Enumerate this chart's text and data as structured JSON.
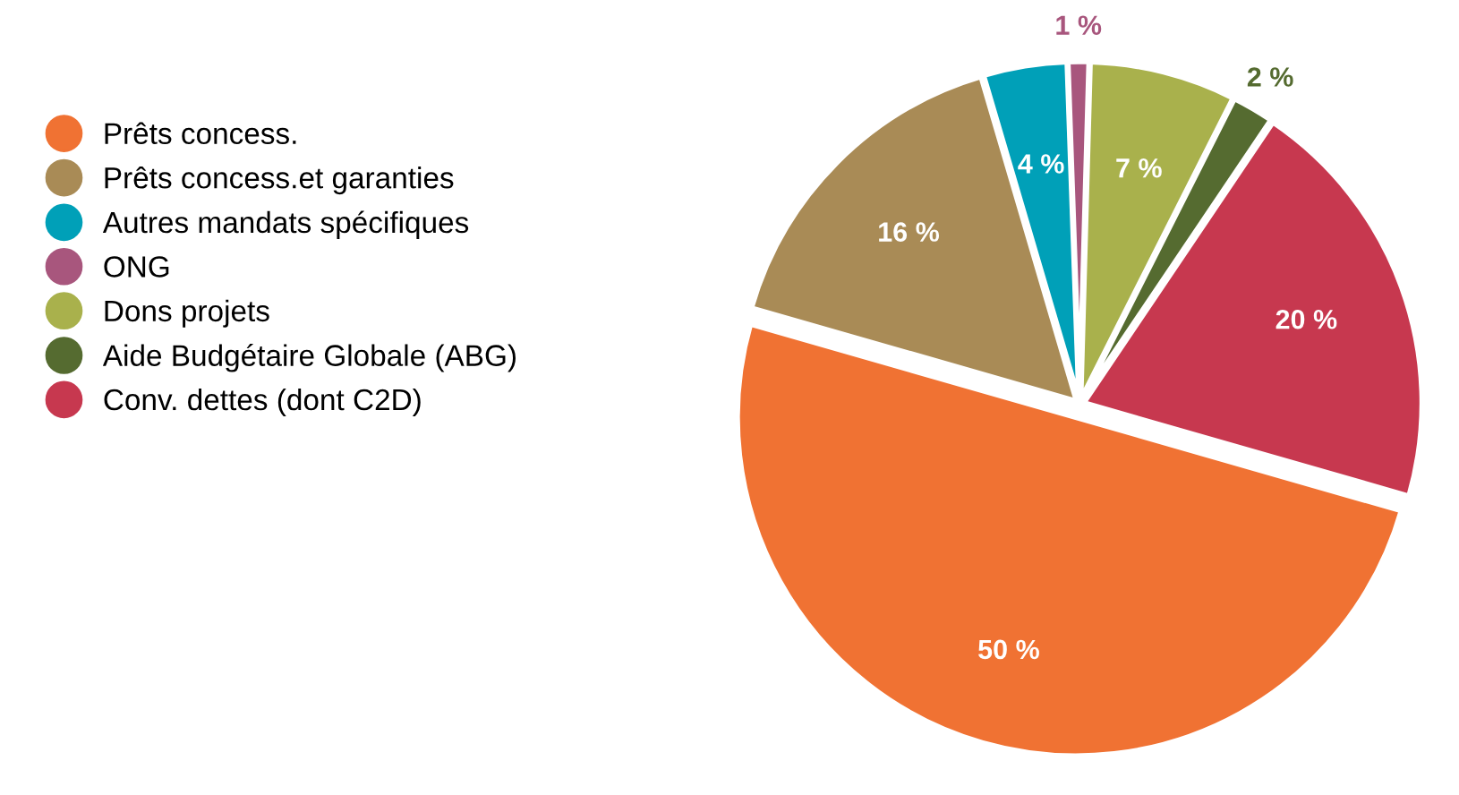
{
  "chart_data": {
    "type": "pie",
    "categories": [
      "Prêts concess.",
      "Prêts concess.et garanties",
      "Autres mandats spécifiques",
      "ONG",
      "Dons projets",
      "Aide Budgétaire Globale (ABG)",
      "Conv. dettes (dont C2D)"
    ],
    "values": [
      50,
      16,
      4,
      1,
      7,
      2,
      20
    ],
    "value_labels": [
      "50 %",
      "16 %",
      "4 %",
      "1 %",
      "7 %",
      "2 %",
      "20 %"
    ],
    "colors": [
      "#f07233",
      "#a98b56",
      "#00a0b8",
      "#a8567d",
      "#a9b14c",
      "#556b30",
      "#c7384f"
    ],
    "legend": "left"
  }
}
